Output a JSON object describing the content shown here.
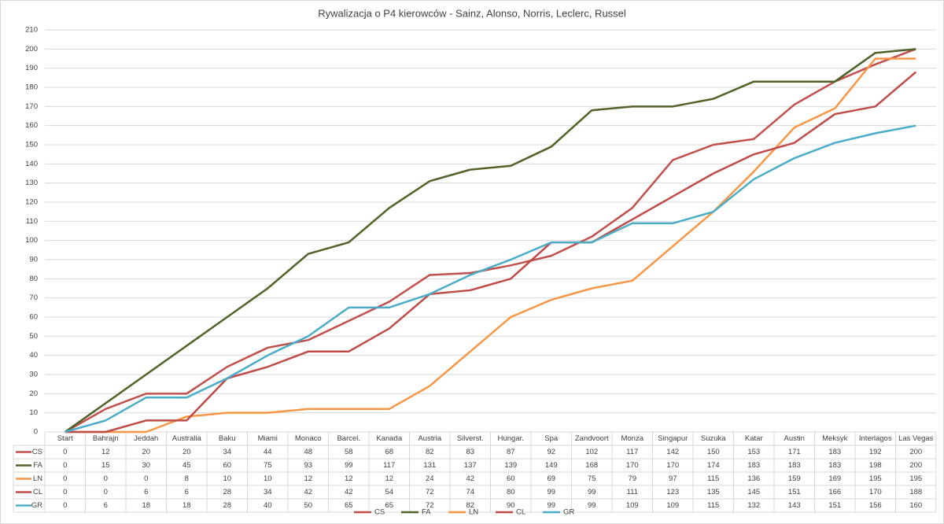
{
  "chart_data": {
    "type": "line",
    "title": "Rywalizacja o P4 kierowców - Sainz, Alonso, Norris, Leclerc, Russel",
    "categories": [
      "Start",
      "Bahrajn",
      "Jeddah",
      "Australia",
      "Baku",
      "Miami",
      "Monaco",
      "Barcel.",
      "Kanada",
      "Austria",
      "Silverst.",
      "Hungar.",
      "Spa",
      "Zandvoort",
      "Monza",
      "Singapur",
      "Suzuka",
      "Katar",
      "Austin",
      "Meksyk",
      "Interlagos",
      "Las Vegas"
    ],
    "series": [
      {
        "name": "CS",
        "color": "#c0504d",
        "values": [
          0,
          12,
          20,
          20,
          34,
          44,
          48,
          58,
          68,
          82,
          83,
          87,
          92,
          102,
          117,
          142,
          150,
          153,
          171,
          183,
          192,
          200
        ]
      },
      {
        "name": "FA",
        "color": "#4f6228",
        "values": [
          0,
          15,
          30,
          45,
          60,
          75,
          93,
          99,
          117,
          131,
          137,
          139,
          149,
          168,
          170,
          170,
          174,
          183,
          183,
          183,
          198,
          200
        ]
      },
      {
        "name": "LN",
        "color": "#f79646",
        "values": [
          0,
          0,
          0,
          8,
          10,
          10,
          12,
          12,
          12,
          24,
          42,
          60,
          69,
          75,
          79,
          97,
          115,
          136,
          159,
          169,
          195,
          195
        ]
      },
      {
        "name": "CL",
        "color": "#be4b48",
        "values": [
          0,
          0,
          6,
          6,
          28,
          34,
          42,
          42,
          54,
          72,
          74,
          80,
          99,
          99,
          111,
          123,
          135,
          145,
          151,
          166,
          170,
          188
        ]
      },
      {
        "name": "GR",
        "color": "#4bacc6",
        "values": [
          0,
          6,
          18,
          18,
          28,
          40,
          50,
          65,
          65,
          72,
          82,
          90,
          99,
          99,
          109,
          109,
          115,
          132,
          143,
          151,
          156,
          160
        ]
      }
    ],
    "ylim": [
      0,
      210
    ],
    "yticks": [
      0,
      10,
      20,
      30,
      40,
      50,
      60,
      70,
      80,
      90,
      100,
      110,
      120,
      130,
      140,
      150,
      160,
      170,
      180,
      190,
      200,
      210
    ],
    "grid": true,
    "data_table": true,
    "legend": "bottom"
  }
}
